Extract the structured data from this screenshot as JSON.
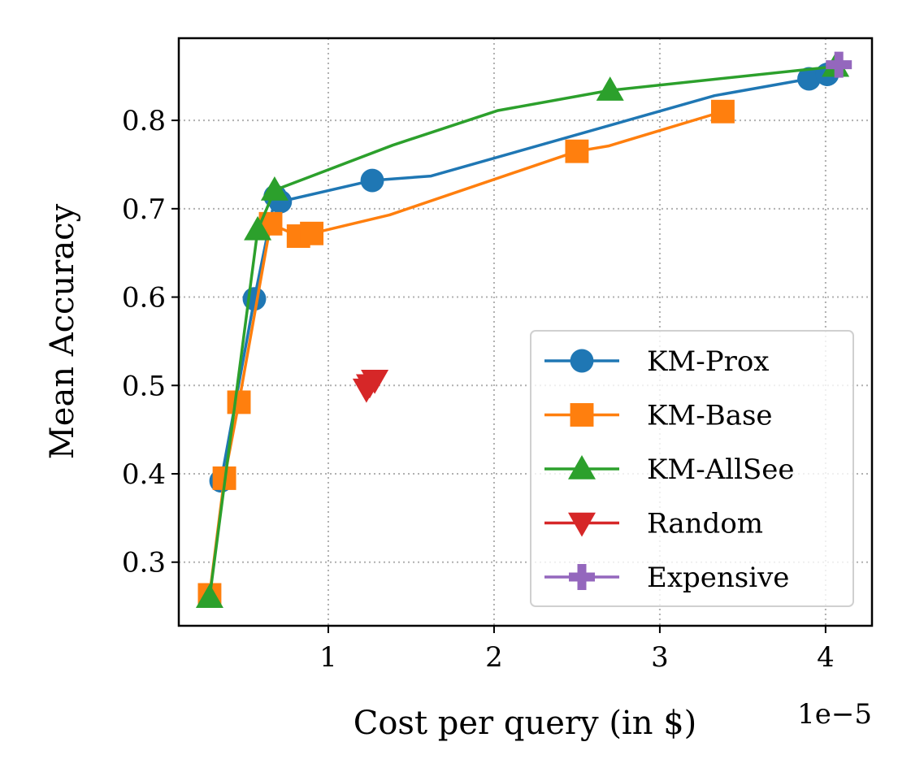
{
  "chart_data": {
    "type": "line",
    "xlabel": "Cost per query (in $)",
    "ylabel": "Mean Accuracy",
    "x_scale_label": "1e−5",
    "xlim": [
      0.098,
      4.28
    ],
    "ylim": [
      0.228,
      0.893
    ],
    "xticks": [
      1,
      2,
      3,
      4
    ],
    "xtick_labels": [
      "1",
      "2",
      "3",
      "4"
    ],
    "yticks": [
      0.3,
      0.4,
      0.5,
      0.6,
      0.7,
      0.8
    ],
    "ytick_labels": [
      "0.3",
      "0.4",
      "0.5",
      "0.6",
      "0.7",
      "0.8"
    ],
    "grid": true,
    "legend_position": "lower-right",
    "series": [
      {
        "name": "KM-Prox",
        "color": "#1f77b4",
        "marker": "circle",
        "line": [
          [
            0.353,
            0.392
          ],
          [
            0.554,
            0.598
          ],
          [
            0.68,
            0.714
          ],
          [
            0.71,
            0.708
          ],
          [
            1.265,
            0.732
          ],
          [
            1.62,
            0.737
          ],
          [
            3.33,
            0.828
          ],
          [
            3.9,
            0.847
          ],
          [
            4.01,
            0.852
          ]
        ],
        "points": [
          [
            0.353,
            0.392
          ],
          [
            0.554,
            0.598
          ],
          [
            0.68,
            0.714
          ],
          [
            0.71,
            0.708
          ],
          [
            1.265,
            0.732
          ],
          [
            3.9,
            0.847
          ],
          [
            4.01,
            0.852
          ]
        ]
      },
      {
        "name": "KM-Base",
        "color": "#ff7f0e",
        "marker": "square",
        "line": [
          [
            0.284,
            0.263
          ],
          [
            0.373,
            0.395
          ],
          [
            0.461,
            0.481
          ],
          [
            0.652,
            0.683
          ],
          [
            0.82,
            0.669
          ],
          [
            0.9,
            0.672
          ],
          [
            1.37,
            0.693
          ],
          [
            2.5,
            0.765
          ],
          [
            2.69,
            0.771
          ],
          [
            3.38,
            0.81
          ]
        ],
        "points": [
          [
            0.284,
            0.263
          ],
          [
            0.373,
            0.395
          ],
          [
            0.461,
            0.481
          ],
          [
            0.652,
            0.683
          ],
          [
            0.82,
            0.669
          ],
          [
            0.9,
            0.672
          ],
          [
            2.5,
            0.765
          ],
          [
            3.38,
            0.81
          ]
        ]
      },
      {
        "name": "KM-AllSee",
        "color": "#2ca02c",
        "marker": "triangle-up",
        "line": [
          [
            0.284,
            0.26
          ],
          [
            0.574,
            0.676
          ],
          [
            0.676,
            0.721
          ],
          [
            1.39,
            0.772
          ],
          [
            2.02,
            0.811
          ],
          [
            2.7,
            0.834
          ],
          [
            4.06,
            0.861
          ]
        ],
        "points": [
          [
            0.284,
            0.26
          ],
          [
            0.574,
            0.676
          ],
          [
            0.676,
            0.721
          ],
          [
            2.7,
            0.834
          ],
          [
            4.06,
            0.861
          ]
        ]
      },
      {
        "name": "Random",
        "color": "#d62728",
        "marker": "triangle-down",
        "line": [],
        "points": [
          [
            1.23,
            0.496
          ],
          [
            1.25,
            0.501
          ],
          [
            1.28,
            0.506
          ]
        ]
      },
      {
        "name": "Expensive",
        "color": "#9467bd",
        "marker": "plus",
        "line": [],
        "points": [
          [
            4.08,
            0.863
          ]
        ]
      }
    ]
  }
}
